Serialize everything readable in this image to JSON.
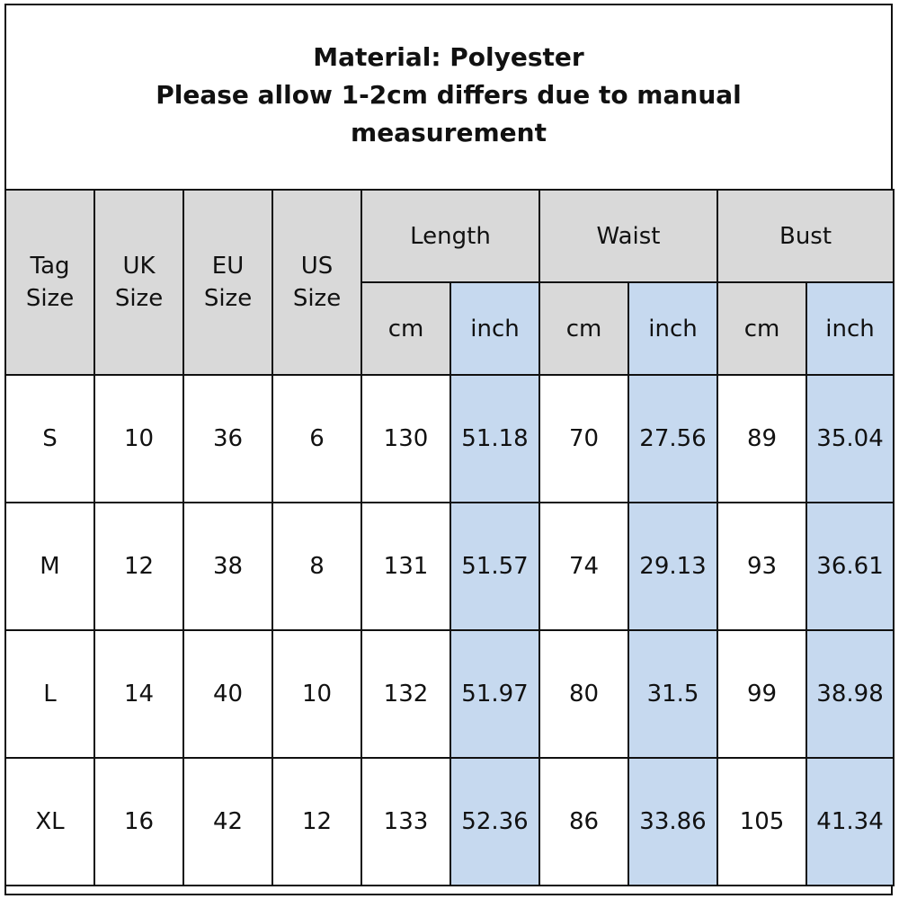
{
  "title": {
    "line1": "Material: Polyester",
    "line2": "Please allow 1-2cm differs due to manual",
    "line3": "measurement"
  },
  "header": {
    "tag_size": [
      "Tag",
      "Size"
    ],
    "uk_size": [
      "UK",
      "Size"
    ],
    "eu_size": [
      "EU",
      "Size"
    ],
    "us_size": [
      "US",
      "Size"
    ],
    "groups": [
      "Length",
      "Waist",
      "Bust"
    ],
    "units": [
      "cm",
      "inch",
      "cm",
      "inch",
      "cm",
      "inch"
    ]
  },
  "rows": [
    [
      "S",
      "10",
      "36",
      "6",
      "130",
      "51.18",
      "70",
      "27.56",
      "89",
      "35.04"
    ],
    [
      "M",
      "12",
      "38",
      "8",
      "131",
      "51.57",
      "74",
      "29.13",
      "93",
      "36.61"
    ],
    [
      "L",
      "14",
      "40",
      "10",
      "132",
      "51.97",
      "80",
      "31.5",
      "99",
      "38.98"
    ],
    [
      "XL",
      "16",
      "42",
      "12",
      "133",
      "52.36",
      "86",
      "33.86",
      "105",
      "41.34"
    ]
  ],
  "colors": {
    "header_fill": "#d9d9d9",
    "inch_fill": "#c6d9ef",
    "border": "#111111"
  }
}
